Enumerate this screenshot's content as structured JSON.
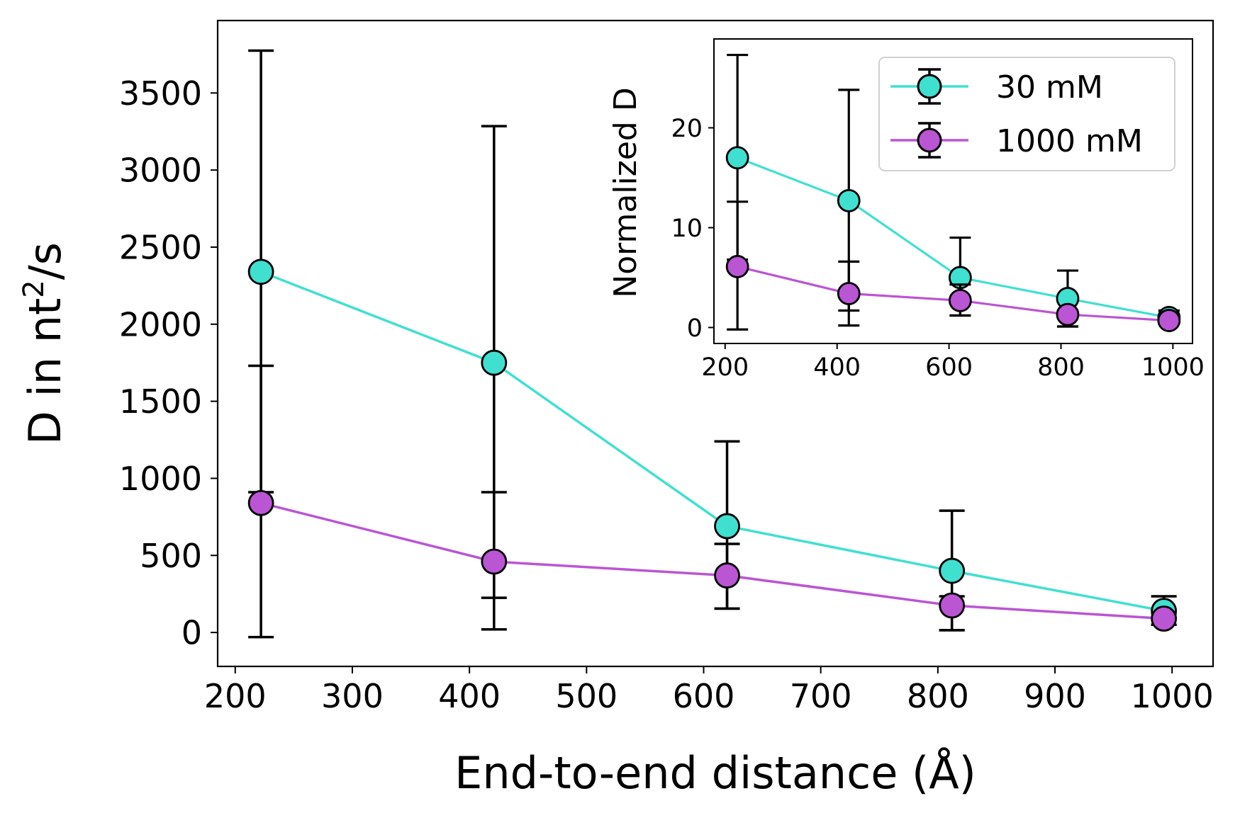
{
  "chart_data": [
    {
      "type": "line",
      "title": "",
      "xlabel": "End-to-end distance (Å)",
      "ylabel_main": "D in nt",
      "ylabel_sup": "2",
      "ylabel_tail": "/s",
      "xlim": [
        185,
        1035
      ],
      "ylim": [
        -220,
        3970
      ],
      "xticks": [
        200,
        300,
        400,
        500,
        600,
        700,
        800,
        900,
        1000
      ],
      "yticks": [
        0,
        500,
        1000,
        1500,
        2000,
        2500,
        3000,
        3500
      ],
      "x": [
        222,
        421,
        620,
        812,
        993
      ],
      "series": [
        {
          "name": "30 mM",
          "color": "#40e0d0",
          "values": [
            2340,
            1750,
            690,
            400,
            140
          ],
          "err_low": [
            -30,
            225,
            155,
            15,
            50
          ],
          "err_high": [
            3775,
            3285,
            1240,
            790,
            235
          ]
        },
        {
          "name": "1000 mM",
          "color": "#ba55d3",
          "values": [
            840,
            460,
            370,
            175,
            90
          ],
          "err_low": [
            910,
            20,
            155,
            15,
            50
          ],
          "err_high": [
            1730,
            910,
            575,
            235,
            120
          ]
        }
      ],
      "legend": "none"
    },
    {
      "type": "line",
      "title": "",
      "xlabel": "",
      "ylabel": "Normalized D",
      "xlim": [
        180,
        1035
      ],
      "ylim": [
        -1.6,
        28.9
      ],
      "xticks": [
        200,
        400,
        600,
        800,
        1000
      ],
      "yticks": [
        0,
        10,
        20
      ],
      "x": [
        222,
        421,
        620,
        812,
        993
      ],
      "series": [
        {
          "name": "30 mM",
          "color": "#40e0d0",
          "values": [
            17.0,
            12.7,
            5.0,
            2.9,
            1.0
          ],
          "err_low": [
            -0.2,
            1.7,
            1.2,
            0.1,
            0.4
          ],
          "err_high": [
            27.3,
            23.8,
            9.0,
            5.7,
            1.7
          ]
        },
        {
          "name": "1000 mM",
          "color": "#ba55d3",
          "values": [
            6.1,
            3.4,
            2.7,
            1.3,
            0.7
          ],
          "err_low": [
            6.8,
            0.2,
            1.2,
            0.1,
            0.4
          ],
          "err_high": [
            12.6,
            6.6,
            4.3,
            1.7,
            0.9
          ]
        }
      ],
      "legend": "top-right"
    }
  ]
}
